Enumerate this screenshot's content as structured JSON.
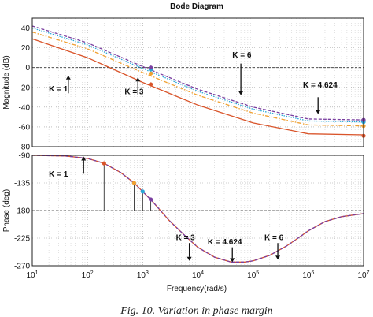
{
  "chart_data": [
    {
      "type": "line",
      "title": "Bode Diagram",
      "xlabel": "",
      "ylabel": "Magnitude (dB)",
      "xscale": "log",
      "xlim": [
        10,
        10000000
      ],
      "ylim": [
        -80,
        50
      ],
      "ytick_labels": [
        "-80",
        "-60",
        "-40",
        "-20",
        "0",
        "20",
        "40"
      ],
      "grid": "dotted",
      "reference_line": 0,
      "series": [
        {
          "name": "K = 1",
          "color": "#d9542a",
          "style": "solid",
          "x": [
            10,
            100,
            1000,
            10000,
            100000,
            1000000,
            10000000
          ],
          "values": [
            29,
            10,
            -15,
            -38,
            -56,
            -67,
            -68
          ]
        },
        {
          "name": "K = 3",
          "color": "#f0a030",
          "style": "dashdot",
          "x": [
            10,
            100,
            1000,
            10000,
            100000,
            1000000,
            10000000
          ],
          "values": [
            36,
            19,
            -5,
            -28,
            -46,
            -58,
            -59
          ]
        },
        {
          "name": "K = 4.624",
          "color": "#28a8d8",
          "style": "dotted",
          "x": [
            10,
            100,
            1000,
            10000,
            100000,
            1000000,
            10000000
          ],
          "values": [
            40,
            23,
            -1,
            -24,
            -42,
            -54,
            -55
          ]
        },
        {
          "name": "K = 6",
          "color": "#7a3fa0",
          "style": "dashed",
          "x": [
            10,
            100,
            1000,
            10000,
            100000,
            1000000,
            10000000
          ],
          "values": [
            42,
            25,
            1,
            -22,
            -40,
            -52,
            -53
          ]
        }
      ],
      "markers": [
        {
          "x": 1400,
          "y": -17,
          "color": "#d9542a"
        },
        {
          "x": 1400,
          "y": -6,
          "color": "#f0a030"
        },
        {
          "x": 1400,
          "y": -2,
          "color": "#28a8d8"
        },
        {
          "x": 1400,
          "y": 0,
          "color": "#7a3fa0"
        },
        {
          "x": 10000000,
          "y": -69,
          "color": "#d9542a"
        },
        {
          "x": 10000000,
          "y": -59,
          "color": "#f0a030"
        },
        {
          "x": 10000000,
          "y": -55,
          "color": "#28a8d8"
        },
        {
          "x": 10000000,
          "y": -53,
          "color": "#7a3fa0"
        }
      ],
      "annotations": [
        {
          "text": "K = 1",
          "x": 20,
          "y": -24,
          "arrow_x": 45,
          "arrow_y1": -26,
          "arrow_y2": -8
        },
        {
          "text": "K = 3",
          "x": 470,
          "y": -27,
          "arrow_x": 820,
          "arrow_y1": -27,
          "arrow_y2": -10
        },
        {
          "text": "K = 6",
          "x": 42000,
          "y": 10,
          "arrow_x": 60000,
          "arrow_y1": 4,
          "arrow_y2": -28
        },
        {
          "text": "K = 4.624",
          "x": 800000,
          "y": -20,
          "arrow_x": 1500000,
          "arrow_y1": -30,
          "arrow_y2": -47
        }
      ]
    },
    {
      "type": "line",
      "title": "",
      "xlabel": "Frequency(rad/s)",
      "ylabel": "Phase (deg)",
      "xscale": "log",
      "xlim": [
        10,
        10000000
      ],
      "ylim": [
        -270,
        -90
      ],
      "xtick_labels": [
        {
          "base": "10",
          "exp": "1"
        },
        {
          "base": "10",
          "exp": "2"
        },
        {
          "base": "10",
          "exp": "3"
        },
        {
          "base": "10",
          "exp": "4"
        },
        {
          "base": "10",
          "exp": "5"
        },
        {
          "base": "10",
          "exp": "6"
        },
        {
          "base": "10",
          "exp": "7"
        }
      ],
      "ytick_labels": [
        "-270",
        "-225",
        "-180",
        "-135",
        "-90"
      ],
      "grid": "dotted",
      "reference_line": -180,
      "series": [
        {
          "name": "K = 1",
          "color": "#d9542a",
          "style": "solid",
          "x": [
            10,
            40,
            100,
            200,
            400,
            700,
            1000,
            1500,
            3000,
            6000,
            10000,
            20000,
            40000,
            70000,
            100000,
            200000,
            400000,
            700000,
            1000000,
            2000000,
            4000000,
            10000000
          ],
          "values": [
            -90,
            -91,
            -95,
            -103,
            -118,
            -135,
            -149,
            -165,
            -196,
            -222,
            -240,
            -256,
            -264,
            -264,
            -262,
            -253,
            -238,
            -223,
            -213,
            -198,
            -190,
            -185
          ]
        },
        {
          "name": "K = 6",
          "color": "#7a3fa0",
          "style": "dashed",
          "x": [
            10,
            40,
            100,
            200,
            400,
            700,
            1000,
            1500,
            3000,
            6000,
            10000,
            20000,
            40000,
            70000,
            100000,
            200000,
            400000,
            700000,
            1000000,
            2000000,
            4000000,
            10000000
          ],
          "values": [
            -90,
            -91,
            -95,
            -103,
            -118,
            -135,
            -149,
            -165,
            -196,
            -222,
            -240,
            -256,
            -264,
            -264,
            -262,
            -253,
            -238,
            -223,
            -213,
            -198,
            -190,
            -185
          ]
        }
      ],
      "markers": [
        {
          "x": 200,
          "y": -103,
          "color": "#d9542a"
        },
        {
          "x": 700,
          "y": -135,
          "color": "#f0a030"
        },
        {
          "x": 1000,
          "y": -149,
          "color": "#28a8d8"
        },
        {
          "x": 1400,
          "y": -162,
          "color": "#7a3fa0"
        }
      ],
      "stems": [
        {
          "x": 200,
          "y_top": -103
        },
        {
          "x": 700,
          "y_top": -135
        },
        {
          "x": 1000,
          "y_top": -149
        },
        {
          "x": 1400,
          "y_top": -162
        }
      ],
      "annotations": [
        {
          "text": "K = 1",
          "x": 20,
          "y": -125,
          "arrow_x": 85,
          "arrow_y1": -120,
          "arrow_y2": -92
        },
        {
          "text": "K = 3",
          "x": 4000,
          "y": -228,
          "arrow_x": 7000,
          "arrow_y1": -233,
          "arrow_y2": -262
        },
        {
          "text": "K = 4.624",
          "x": 15000,
          "y": -235,
          "arrow_x": 42000,
          "arrow_y1": -240,
          "arrow_y2": -264
        },
        {
          "text": "K = 6",
          "x": 160000,
          "y": -228,
          "arrow_x": 280000,
          "arrow_y1": -233,
          "arrow_y2": -260
        }
      ]
    }
  ],
  "caption": "Fig. 10. Variation in phase margin"
}
